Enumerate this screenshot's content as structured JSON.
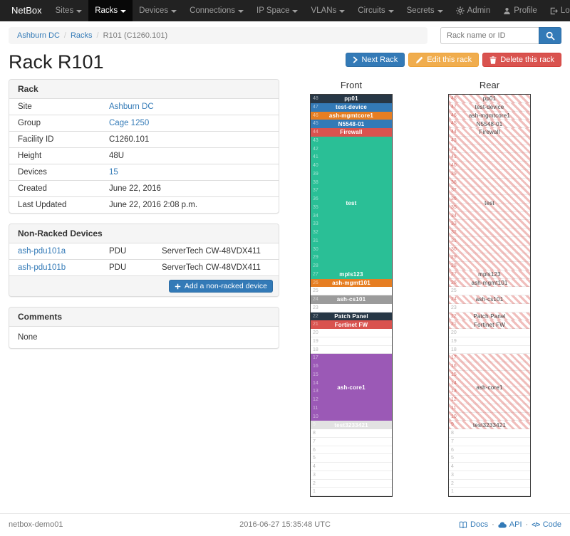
{
  "navbar": {
    "brand": "NetBox",
    "items": [
      "Sites",
      "Racks",
      "Devices",
      "Connections",
      "IP Space",
      "VLANs",
      "Circuits",
      "Secrets"
    ],
    "active_item": "Racks",
    "user_items": [
      {
        "label": "Admin",
        "icon": "gear-icon"
      },
      {
        "label": "Profile",
        "icon": "user-icon"
      },
      {
        "label": "Log out",
        "icon": "logout-icon"
      }
    ]
  },
  "breadcrumb": {
    "links": [
      "Ashburn DC",
      "Racks"
    ],
    "current": "R101 (C1260.101)"
  },
  "search": {
    "placeholder": "Rack name or ID"
  },
  "page": {
    "title": "Rack R101"
  },
  "actions": [
    {
      "label": "Next Rack",
      "style": "primary",
      "icon": "chevron-right-icon"
    },
    {
      "label": "Edit this rack",
      "style": "warning",
      "icon": "pencil-icon"
    },
    {
      "label": "Delete this rack",
      "style": "danger",
      "icon": "trash-icon"
    }
  ],
  "rack_info": {
    "title": "Rack",
    "rows": [
      {
        "label": "Site",
        "value": "Ashburn DC",
        "is_link": true
      },
      {
        "label": "Group",
        "value": "Cage 1250",
        "is_link": true
      },
      {
        "label": "Facility ID",
        "value": "C1260.101",
        "is_link": false
      },
      {
        "label": "Height",
        "value": "48U",
        "is_link": false
      },
      {
        "label": "Devices",
        "value": "15",
        "is_link": true
      },
      {
        "label": "Created",
        "value": "June 22, 2016",
        "is_link": false
      },
      {
        "label": "Last Updated",
        "value": "June 22, 2016 2:08 p.m.",
        "is_link": false
      }
    ]
  },
  "non_racked": {
    "title": "Non-Racked Devices",
    "devices": [
      {
        "name": "ash-pdu101a",
        "type": "PDU",
        "model": "ServerTech CW-48VDX411"
      },
      {
        "name": "ash-pdu101b",
        "type": "PDU",
        "model": "ServerTech CW-48VDX411"
      }
    ],
    "add_button": "Add a non-racked device"
  },
  "comments": {
    "title": "Comments",
    "body": "None"
  },
  "elevation": {
    "front_title": "Front",
    "rear_title": "Rear",
    "total_units": 48,
    "hatch_color": "#d9534f",
    "devices": [
      {
        "name": "pp01",
        "top_unit": 48,
        "u_height": 1,
        "color": "#273746",
        "text_color": "#ffffff"
      },
      {
        "name": "test-device",
        "top_unit": 47,
        "u_height": 1,
        "color": "#337ab7",
        "text_color": "#ffffff"
      },
      {
        "name": "ash-mgmtcore1",
        "top_unit": 46,
        "u_height": 1,
        "color": "#e67e22",
        "text_color": "#ffffff"
      },
      {
        "name": "N5548-01",
        "top_unit": 45,
        "u_height": 1,
        "color": "#337ab7",
        "text_color": "#ffffff"
      },
      {
        "name": "Firewall",
        "top_unit": 44,
        "u_height": 1,
        "color": "#d9534f",
        "text_color": "#ffffff"
      },
      {
        "name": "test",
        "top_unit": 43,
        "u_height": 16,
        "color": "#2abf96",
        "text_color": "#ffffff"
      },
      {
        "name": "mpls123",
        "top_unit": 27,
        "u_height": 1,
        "color": "#2abf96",
        "text_color": "#ffffff"
      },
      {
        "name": "ash-mgmt101",
        "top_unit": 26,
        "u_height": 1,
        "color": "#e67e22",
        "text_color": "#ffffff"
      },
      {
        "name": "ash-cs101",
        "top_unit": 24,
        "u_height": 1,
        "color": "#9b9b9b",
        "text_color": "#ffffff"
      },
      {
        "name": "Patch Panel",
        "top_unit": 22,
        "u_height": 1,
        "color": "#273746",
        "text_color": "#ffffff"
      },
      {
        "name": "Fortinet FW",
        "top_unit": 21,
        "u_height": 1,
        "color": "#d9534f",
        "text_color": "#ffffff"
      },
      {
        "name": "ash-core1",
        "top_unit": 17,
        "u_height": 8,
        "color": "#9b59b6",
        "text_color": "#ffffff"
      },
      {
        "name": "test3233421",
        "top_unit": 9,
        "u_height": 1,
        "color": "#e2e2e2",
        "text_color": "#ffffff"
      }
    ]
  },
  "footer": {
    "hostname": "netbox-demo01",
    "timestamp": "2016-06-27 15:35:48 UTC",
    "links": [
      {
        "label": "Docs",
        "icon": "book-icon"
      },
      {
        "label": "API",
        "icon": "cloud-icon"
      },
      {
        "label": "Code",
        "icon": "code-icon"
      }
    ]
  }
}
